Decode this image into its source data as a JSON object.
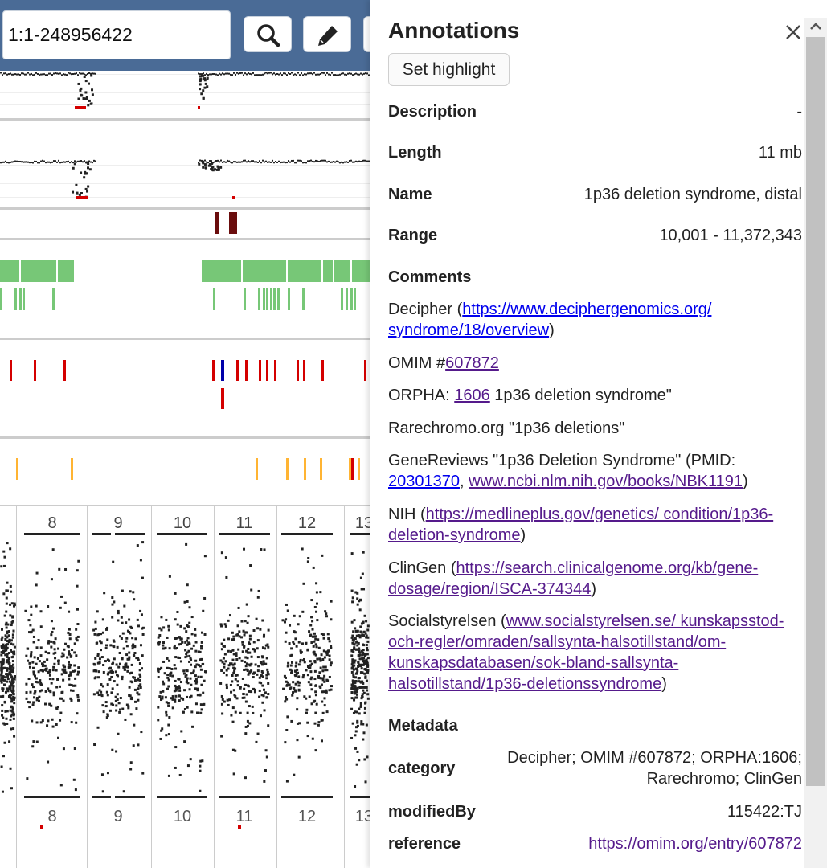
{
  "locus": {
    "value": "1:1-248956422"
  },
  "toolbar": {
    "search_icon": "search-icon",
    "edit_icon": "pencil-icon"
  },
  "chromosome_labels": [
    "8",
    "9",
    "10",
    "11",
    "12",
    "13"
  ],
  "panel": {
    "title": "Annotations",
    "close_icon": "close-icon",
    "set_highlight_label": "Set highlight",
    "fields": [
      {
        "key": "Description",
        "value": "-"
      },
      {
        "key": "Length",
        "value": "11 mb"
      },
      {
        "key": "Name",
        "value": "1p36 deletion syndrome, distal"
      },
      {
        "key": "Range",
        "value": "10,001 - 11,372,343"
      }
    ],
    "comments_heading": "Comments",
    "comments": {
      "decipher_prefix": "Decipher (",
      "decipher_link": "https://www.deciphergenomics.org/ syndrome/18/overview",
      "decipher_suffix": ")",
      "omim_prefix": "OMIM #",
      "omim_link": "607872",
      "orpha_prefix": "ORPHA: ",
      "orpha_link": "1606",
      "orpha_suffix": " 1p36 deletion syndrome\"",
      "rarechromo": "Rarechromo.org \"1p36 deletions\"",
      "genereviews_prefix": "GeneReviews \"1p36 Deletion Syndrome\" (PMID: ",
      "genereviews_link1": "20301370",
      "genereviews_sep": ", ",
      "genereviews_link2": "www.ncbi.nlm.nih.gov/books/NBK1191",
      "genereviews_suffix": ")",
      "nih_prefix": "NIH (",
      "nih_link": "https://medlineplus.gov/genetics/ condition/1p36-deletion-syndrome",
      "nih_suffix": ")",
      "clingen_prefix": "ClinGen (",
      "clingen_link": "https://search.clinicalgenome.org/kb/gene-dosage/region/ISCA-374344",
      "clingen_suffix": ")",
      "socialstyrelsen_prefix": "Socialstyrelsen (",
      "socialstyrelsen_link": "www.socialstyrelsen.se/ kunskapsstod-och-regler/omraden/sallsynta-halsotillstand/om-kunskapsdatabasen/sok-bland-sallsynta-halsotillstand/1p36-deletionssyndrome",
      "socialstyrelsen_suffix": ")"
    },
    "metadata_heading": "Metadata",
    "metadata": {
      "category_key": "category",
      "category_value": "Decipher; OMIM #607872; ORPHA:1606; Rarechromo; ClinGen",
      "modifiedby_key": "modifiedBy",
      "modifiedby_value": "115422:TJ",
      "reference_key": "reference",
      "reference_value": "https://omim.org/entry/607872"
    }
  },
  "colors": {
    "header_bg": "#4a6b96",
    "link_visited": "#551a8b",
    "link_unvisited": "#0000ee",
    "gene_green": "#77c777",
    "variant_red": "#d40000",
    "variant_blue": "#0000aa",
    "highlight_orange": "#ffb433"
  }
}
